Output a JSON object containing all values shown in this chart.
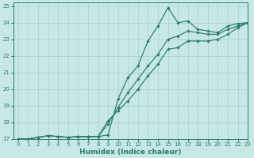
{
  "background_color": "#c8e8e8",
  "grid_color": "#a8ced0",
  "line_color": "#2a7a6a",
  "xlabel": "Humidex (Indice chaleur)",
  "xlim": [
    -0.5,
    23
  ],
  "ylim": [
    17,
    25.2
  ],
  "yticks": [
    17,
    18,
    19,
    20,
    21,
    22,
    23,
    24,
    25
  ],
  "xticks": [
    0,
    1,
    2,
    3,
    4,
    5,
    6,
    7,
    8,
    9,
    10,
    11,
    12,
    13,
    14,
    15,
    16,
    17,
    18,
    19,
    20,
    21,
    22,
    23
  ],
  "series": [
    {
      "x": [
        0,
        1,
        2,
        3,
        4,
        5,
        6,
        7,
        8,
        9,
        10,
        11,
        12,
        13,
        14,
        15,
        16,
        17,
        18,
        19,
        20,
        21,
        22,
        23
      ],
      "y": [
        17.0,
        17.0,
        17.1,
        17.2,
        17.15,
        17.1,
        17.15,
        17.15,
        17.15,
        17.25,
        19.4,
        20.7,
        21.4,
        22.9,
        23.8,
        24.9,
        24.0,
        24.1,
        23.6,
        23.5,
        23.4,
        23.8,
        23.95,
        24.0
      ]
    },
    {
      "x": [
        0,
        1,
        2,
        3,
        4,
        5,
        6,
        7,
        8,
        9,
        10,
        11,
        12,
        13,
        14,
        15,
        16,
        17,
        18,
        19,
        20,
        21,
        22,
        23
      ],
      "y": [
        17.0,
        17.0,
        17.1,
        17.2,
        17.15,
        17.1,
        17.15,
        17.15,
        17.15,
        17.9,
        18.9,
        19.8,
        20.6,
        21.4,
        22.1,
        23.0,
        23.2,
        23.5,
        23.4,
        23.3,
        23.3,
        23.6,
        23.8,
        24.0
      ]
    },
    {
      "x": [
        0,
        1,
        2,
        3,
        4,
        5,
        6,
        7,
        8,
        9,
        10,
        11,
        12,
        13,
        14,
        15,
        16,
        17,
        18,
        19,
        20,
        21,
        22,
        23
      ],
      "y": [
        17.0,
        17.0,
        17.1,
        17.2,
        17.15,
        17.1,
        17.15,
        17.15,
        17.15,
        18.1,
        18.7,
        19.3,
        20.0,
        20.8,
        21.5,
        22.4,
        22.5,
        22.9,
        22.9,
        22.9,
        23.0,
        23.3,
        23.7,
        24.0
      ]
    }
  ]
}
